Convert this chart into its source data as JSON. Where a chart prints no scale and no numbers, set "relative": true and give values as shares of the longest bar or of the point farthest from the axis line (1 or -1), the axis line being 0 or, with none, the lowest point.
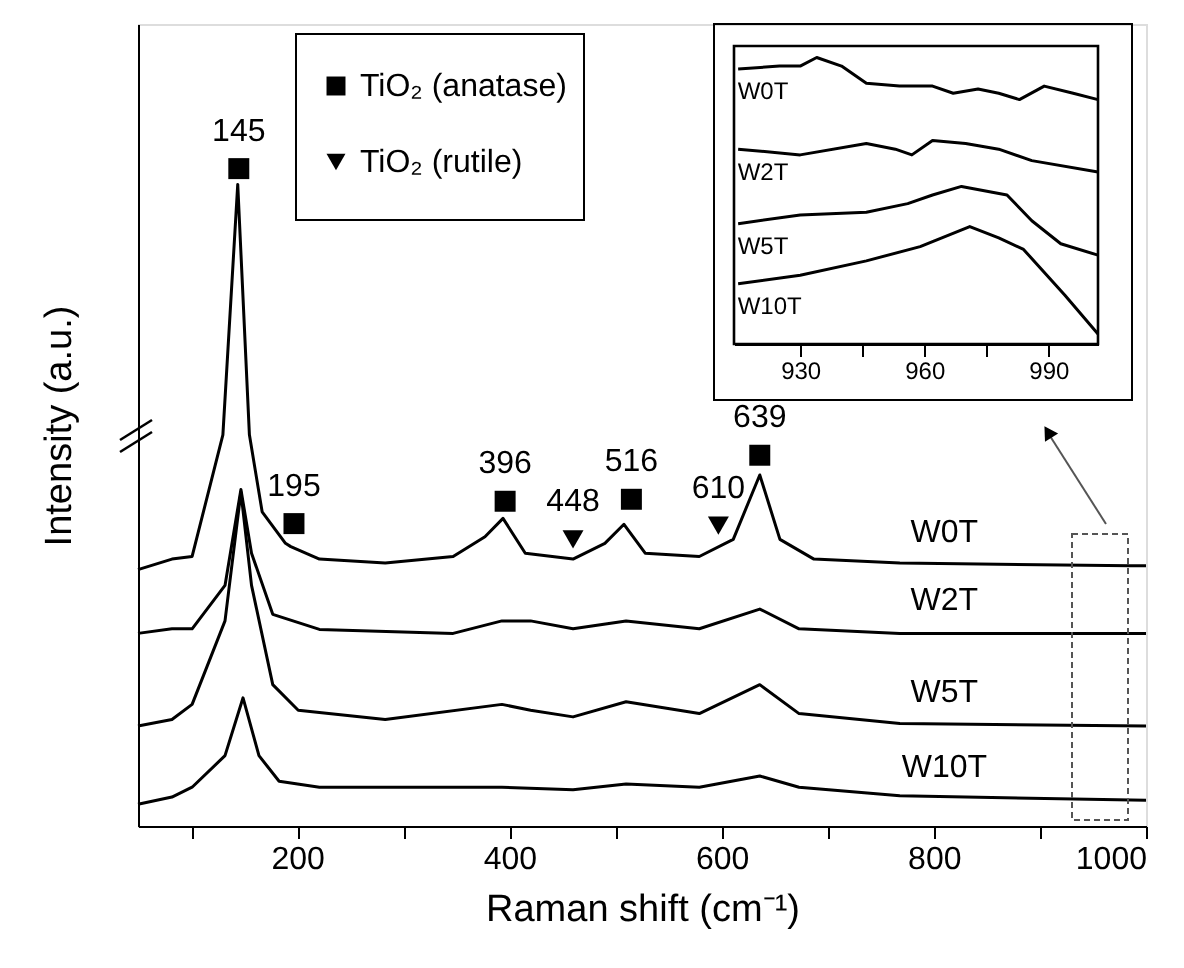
{
  "chart_data": [
    {
      "type": "line",
      "xlabel": "Raman shift (cm⁻¹)",
      "ylabel": "Intensity (a.u.)",
      "relative": true,
      "legend": "top left",
      "marker": "none",
      "xlim": [
        50,
        1000
      ],
      "xticks": [
        {
          "value": 100,
          "label": null
        },
        200,
        {
          "value": 300,
          "label": null
        },
        400,
        {
          "value": 500,
          "label": null
        },
        600,
        {
          "value": 700,
          "label": null
        },
        800,
        {
          "value": 900,
          "label": null
        },
        1000
      ],
      "series": [
        {
          "name": "W0T",
          "color": "#000000",
          "x": [
            50,
            82,
            101,
            130,
            144,
            155,
            167,
            189,
            194,
            221,
            283,
            347,
            377,
            394,
            415,
            460,
            490,
            508,
            528,
            579,
            611,
            636,
            655,
            687,
            768,
            985,
            1000
          ],
          "values": [
            0.39,
            0.406,
            0.41,
            0.595,
            0.976,
            0.595,
            0.478,
            0.43,
            0.425,
            0.406,
            0.4,
            0.41,
            0.44,
            0.468,
            0.415,
            0.406,
            0.43,
            0.459,
            0.415,
            0.41,
            0.436,
            0.534,
            0.436,
            0.406,
            0.4,
            0.396,
            0.396
          ]
        },
        {
          "name": "W2T",
          "color": "#000000",
          "x": [
            50,
            82,
            101,
            132,
            147,
            157,
            177,
            221,
            347,
            393,
            420,
            460,
            510,
            579,
            636,
            673,
            768,
            1000
          ],
          "values": [
            0.293,
            0.3,
            0.3,
            0.366,
            0.512,
            0.415,
            0.322,
            0.299,
            0.293,
            0.312,
            0.312,
            0.3,
            0.312,
            0.3,
            0.33,
            0.3,
            0.293,
            0.293
          ]
        },
        {
          "name": "W5T",
          "color": "#000000",
          "x": [
            50,
            82,
            101,
            132,
            147,
            157,
            177,
            201,
            283,
            393,
            420,
            460,
            510,
            579,
            636,
            673,
            768,
            1000
          ],
          "values": [
            0.152,
            0.162,
            0.185,
            0.312,
            0.508,
            0.366,
            0.215,
            0.176,
            0.162,
            0.185,
            0.176,
            0.166,
            0.189,
            0.171,
            0.215,
            0.171,
            0.156,
            0.152
          ]
        },
        {
          "name": "W10T",
          "color": "#000000",
          "x": [
            50,
            82,
            101,
            132,
            149,
            164,
            183,
            221,
            393,
            460,
            510,
            579,
            636,
            673,
            768,
            1000
          ],
          "values": [
            0.033,
            0.044,
            0.059,
            0.107,
            0.195,
            0.107,
            0.068,
            0.059,
            0.059,
            0.055,
            0.064,
            0.059,
            0.076,
            0.059,
            0.046,
            0.039
          ]
        },
        {
          "name": "TiO₂ (anatase)",
          "type": "scatter",
          "marker": "square",
          "color": "#000000",
          "x": [
            145,
            197,
            396,
            515,
            636
          ],
          "values": [
            1.0,
            0.46,
            0.494,
            0.497,
            0.564
          ]
        },
        {
          "name": "TiO₂ (rutile)",
          "type": "scatter",
          "marker": "triangle",
          "color": "#000000",
          "x": [
            460,
            597
          ],
          "values": [
            0.436,
            0.457
          ]
        }
      ],
      "annotations": [
        "145",
        "195",
        "396",
        "516",
        "639",
        "448",
        "610"
      ]
    },
    {
      "type": "line",
      "relative": true,
      "marker": "none",
      "xlim": [
        914,
        1002
      ],
      "xticks": [
        930,
        {
          "value": 945,
          "label": null
        },
        960,
        {
          "value": 975,
          "label": null
        },
        990
      ],
      "series": [
        {
          "name": "W0T",
          "color": "#000000",
          "x": [
            915,
            925,
            930,
            934,
            940,
            946,
            954,
            962,
            967,
            973,
            978,
            983,
            989,
            996,
            1002
          ],
          "values": [
            0.96,
            0.97,
            0.97,
            1.0,
            0.97,
            0.91,
            0.9,
            0.9,
            0.875,
            0.89,
            0.875,
            0.853,
            0.9,
            0.875,
            0.853
          ]
        },
        {
          "name": "W2T",
          "color": "#000000",
          "x": [
            915,
            930,
            946,
            953,
            957,
            962,
            970,
            978,
            986,
            1002
          ],
          "values": [
            0.68,
            0.66,
            0.7,
            0.68,
            0.66,
            0.71,
            0.7,
            0.68,
            0.64,
            0.6
          ]
        },
        {
          "name": "W5T",
          "color": "#000000",
          "x": [
            915,
            930,
            946,
            956,
            962,
            969,
            980,
            986,
            993,
            1002
          ],
          "values": [
            0.42,
            0.45,
            0.46,
            0.49,
            0.52,
            0.55,
            0.52,
            0.43,
            0.35,
            0.31
          ]
        },
        {
          "name": "W10T",
          "color": "#000000",
          "x": [
            915,
            930,
            946,
            959,
            971,
            978,
            984,
            994,
            1002
          ],
          "values": [
            0.21,
            0.24,
            0.29,
            0.34,
            0.41,
            0.37,
            0.33,
            0.17,
            0.035
          ]
        }
      ]
    }
  ]
}
